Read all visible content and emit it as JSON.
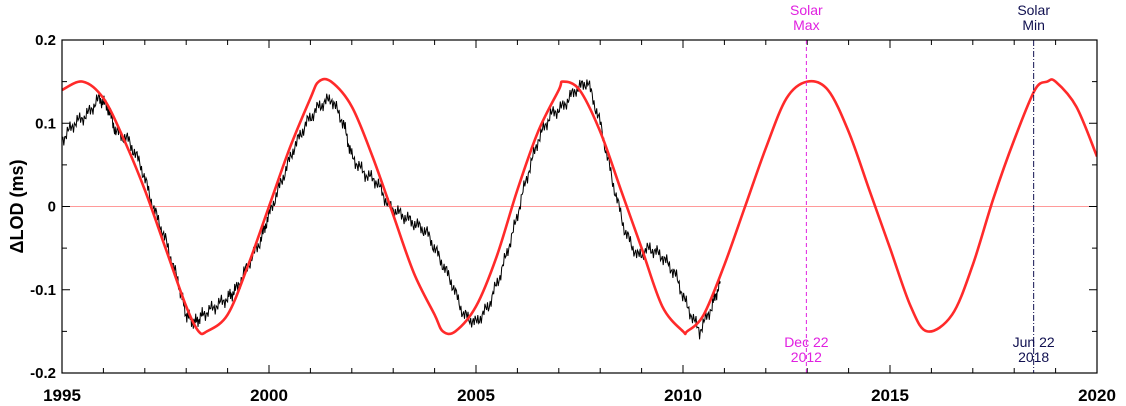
{
  "chart_data": {
    "type": "line",
    "ylabel": "ΔLOD (ms)",
    "xlabel": "",
    "title": "",
    "xlim": [
      1995,
      2020
    ],
    "ylim": [
      -0.2,
      0.2
    ],
    "x_ticks": [
      1995,
      2000,
      2005,
      2010,
      2015,
      2020
    ],
    "x_tick_labels": [
      "1995",
      "2000",
      "2005",
      "2010",
      "2015",
      "2020"
    ],
    "y_ticks": [
      -0.2,
      -0.1,
      0,
      0.1,
      0.2
    ],
    "y_tick_labels": [
      "-0.2",
      "-0.1",
      "0",
      "0.1",
      "0.2"
    ],
    "grid": false,
    "zero_line": {
      "y": 0,
      "color": "#ff9a9a"
    },
    "series": [
      {
        "style": "observed",
        "color": "#000000",
        "x": [
          1995.0,
          1995.3,
          1995.6,
          1995.9,
          1996.1,
          1996.3,
          1996.6,
          1996.9,
          1997.2,
          1997.5,
          1997.8,
          1998.0,
          1998.2,
          1998.4,
          1998.7,
          1999.0,
          1999.2,
          1999.5,
          1999.8,
          2000.0,
          2000.3,
          2000.6,
          2000.9,
          2001.2,
          2001.5,
          2001.8,
          2002.0,
          2002.3,
          2002.6,
          2002.9,
          2003.2,
          2003.5,
          2003.8,
          2004.1,
          2004.4,
          2004.7,
          2005.0,
          2005.3,
          2005.6,
          2005.9,
          2006.2,
          2006.5,
          2006.8,
          2007.1,
          2007.4,
          2007.7,
          2008.0,
          2008.3,
          2008.6,
          2008.9,
          2009.2,
          2009.5,
          2009.8,
          2010.1,
          2010.4,
          2010.7,
          2010.9
        ],
        "values": [
          0.08,
          0.1,
          0.11,
          0.13,
          0.12,
          0.09,
          0.08,
          0.05,
          0.0,
          -0.04,
          -0.09,
          -0.13,
          -0.14,
          -0.13,
          -0.12,
          -0.11,
          -0.1,
          -0.07,
          -0.04,
          -0.01,
          0.03,
          0.07,
          0.1,
          0.12,
          0.13,
          0.1,
          0.06,
          0.04,
          0.03,
          0.0,
          -0.01,
          -0.02,
          -0.03,
          -0.06,
          -0.09,
          -0.13,
          -0.14,
          -0.12,
          -0.08,
          -0.03,
          0.03,
          0.08,
          0.11,
          0.12,
          0.14,
          0.15,
          0.1,
          0.03,
          -0.03,
          -0.06,
          -0.05,
          -0.06,
          -0.08,
          -0.12,
          -0.15,
          -0.12,
          -0.09
        ]
      },
      {
        "style": "model",
        "color": "#ff2a2a",
        "x": [
          1995.0,
          1995.5,
          1996.0,
          1996.5,
          1997.0,
          1997.5,
          1998.0,
          1998.3,
          1998.5,
          1999.0,
          1999.5,
          2000.0,
          2000.5,
          2001.0,
          2001.2,
          2001.5,
          2002.0,
          2002.5,
          2003.0,
          2003.5,
          2004.0,
          2004.2,
          2004.5,
          2005.0,
          2005.5,
          2006.0,
          2006.5,
          2007.0,
          2007.1,
          2007.5,
          2008.0,
          2008.5,
          2009.0,
          2009.5,
          2010.0,
          2010.1,
          2010.5,
          2011.0,
          2011.5,
          2012.0,
          2012.5,
          2013.0,
          2013.5,
          2014.0,
          2014.5,
          2015.0,
          2015.5,
          2015.9,
          2016.5,
          2017.0,
          2017.5,
          2018.0,
          2018.5,
          2018.8,
          2019.0,
          2019.5,
          2020.0
        ],
        "values": [
          0.14,
          0.15,
          0.13,
          0.08,
          0.02,
          -0.05,
          -0.12,
          -0.15,
          -0.15,
          -0.13,
          -0.07,
          0.0,
          0.07,
          0.13,
          0.15,
          0.15,
          0.12,
          0.06,
          -0.01,
          -0.08,
          -0.13,
          -0.15,
          -0.15,
          -0.12,
          -0.06,
          0.02,
          0.09,
          0.14,
          0.15,
          0.14,
          0.09,
          0.02,
          -0.05,
          -0.12,
          -0.15,
          -0.15,
          -0.13,
          -0.07,
          0.0,
          0.07,
          0.13,
          0.15,
          0.14,
          0.09,
          0.02,
          -0.05,
          -0.12,
          -0.15,
          -0.13,
          -0.07,
          0.01,
          0.08,
          0.14,
          0.15,
          0.15,
          0.12,
          0.06
        ]
      }
    ],
    "markers": [
      {
        "x": 2012.98,
        "label_top": [
          "Solar",
          "Max"
        ],
        "label_bottom": [
          "Dec 22",
          "2012"
        ],
        "color": "#e020e0",
        "line_style": "dashed"
      },
      {
        "x": 2018.47,
        "label_top": [
          "Solar",
          "Min"
        ],
        "label_bottom": [
          "Jun 22",
          "2018"
        ],
        "color": "#101050",
        "line_style": "dash-dot"
      }
    ]
  }
}
